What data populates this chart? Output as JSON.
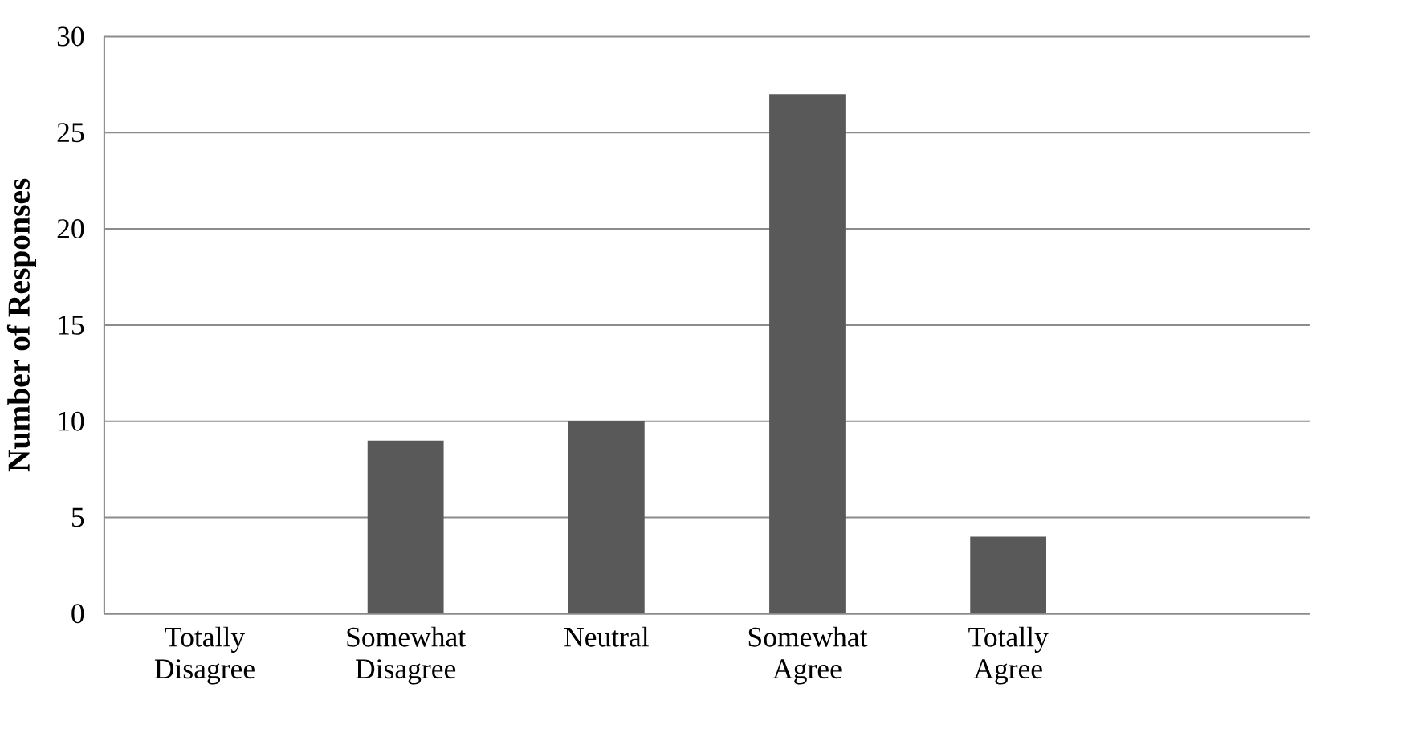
{
  "chart_data": {
    "type": "bar",
    "ylabel": "Number of Responses",
    "categories": [
      "Totally Disagree",
      "Somewhat Disagree",
      "Neutral",
      "Somewhat Agree",
      "Totally Agree",
      null
    ],
    "values": [
      0,
      9,
      10,
      27,
      4,
      null
    ],
    "color": "#595959",
    "ylim": [
      0,
      30
    ],
    "yticks": [
      0,
      5,
      10,
      15,
      20,
      25,
      30
    ],
    "grid": "y"
  }
}
